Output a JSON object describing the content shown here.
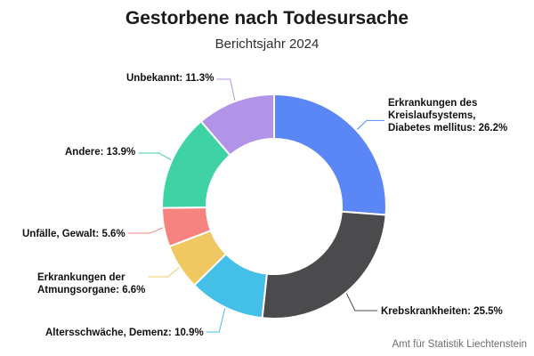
{
  "header": {
    "title": "Gestorbene nach Todesursache",
    "subtitle": "Berichtsjahr 2024"
  },
  "credit": "Amt für Statistik Liechtenstein",
  "chart_data": {
    "type": "pie",
    "donut": true,
    "title": "Gestorbene nach Todesursache",
    "subtitle": "Berichtsjahr 2024",
    "unit": "%",
    "direction": "clockwise",
    "start_angle_deg": 0,
    "categories": [
      "Erkrankungen des Kreislaufsystems, Diabetes mellitus",
      "Krebskrankheiten",
      "Altersschwäche, Demenz",
      "Erkrankungen der Atmungsorgane",
      "Unfälle, Gewalt",
      "Andere",
      "Unbekannt"
    ],
    "values": [
      26.2,
      25.5,
      10.9,
      6.6,
      5.6,
      13.9,
      11.3
    ],
    "slices": [
      {
        "id": "kreislauf",
        "name": "Erkrankungen des Kreislaufsystems, Diabetes mellitus",
        "value": 26.2,
        "color": "#5A87F5"
      },
      {
        "id": "krebs",
        "name": "Krebskrankheiten",
        "value": 25.5,
        "color": "#4B4B4D"
      },
      {
        "id": "alter",
        "name": "Altersschwäche, Demenz",
        "value": 10.9,
        "color": "#44BFE8"
      },
      {
        "id": "atmung",
        "name": "Erkrankungen der Atmungsorgane",
        "value": 6.6,
        "color": "#F0C862"
      },
      {
        "id": "unfaelle",
        "name": "Unfälle, Gewalt",
        "value": 5.6,
        "color": "#F6837F"
      },
      {
        "id": "andere",
        "name": "Andere",
        "value": 13.9,
        "color": "#3ED2A5"
      },
      {
        "id": "unbekannt",
        "name": "Unbekannt",
        "value": 11.3,
        "color": "#B193E8"
      }
    ]
  },
  "labels": {
    "unbekannt": {
      "lines": [
        "Unbekannt: 11.3%"
      ]
    },
    "kreislauf": {
      "lines": [
        "Erkrankungen des",
        "Kreislaufsystems,",
        "Diabetes mellitus: 26.2%"
      ]
    },
    "andere": {
      "lines": [
        "Andere: 13.9%"
      ]
    },
    "unfaelle": {
      "lines": [
        "Unfälle, Gewalt: 5.6%"
      ]
    },
    "atmung": {
      "lines": [
        "Erkrankungen der",
        "Atmungsorgane: 6.6%"
      ]
    },
    "alter": {
      "lines": [
        "Altersschwäche, Demenz: 10.9%"
      ]
    },
    "krebs": {
      "lines": [
        "Krebskrankheiten: 25.5%"
      ]
    }
  }
}
